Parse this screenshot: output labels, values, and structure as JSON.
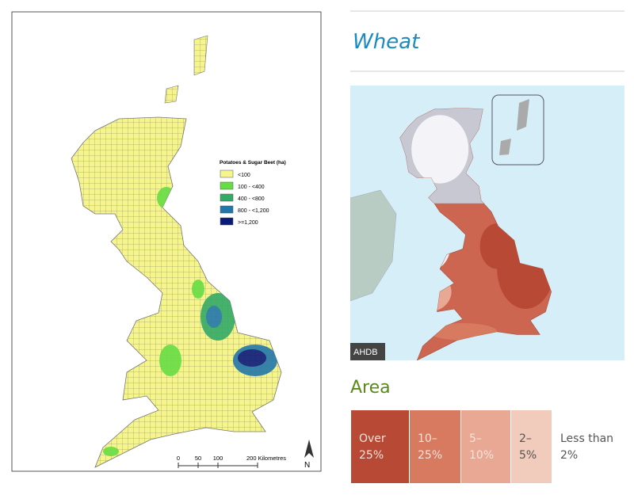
{
  "left_map": {
    "legend_title": "Potatoes & Sugar Beet (ha)",
    "legend": [
      {
        "label": "<100",
        "color": "#f5f58c"
      },
      {
        "label": "100 - <400",
        "color": "#66dd44"
      },
      {
        "label": "400 - <800",
        "color": "#33aa66"
      },
      {
        "label": "800 - <1,200",
        "color": "#2277aa"
      },
      {
        "label": ">=1,200",
        "color": "#0a1a7a"
      }
    ],
    "scale_labels": [
      "0",
      "50",
      "100",
      "200 Kilometres"
    ],
    "north": "N"
  },
  "right_panel": {
    "title": "Wheat",
    "map_credit": "AHDB",
    "legend_title": "Area",
    "legend": [
      {
        "label": "Over 25%",
        "color": "#b84a35"
      },
      {
        "label": "10–25%",
        "color": "#d77a60"
      },
      {
        "label": "5–10%",
        "color": "#e9a893"
      },
      {
        "label": "2–5%",
        "color": "#f1cbbb"
      },
      {
        "label": "Less than 2%",
        "color": "#ffffff"
      }
    ]
  }
}
